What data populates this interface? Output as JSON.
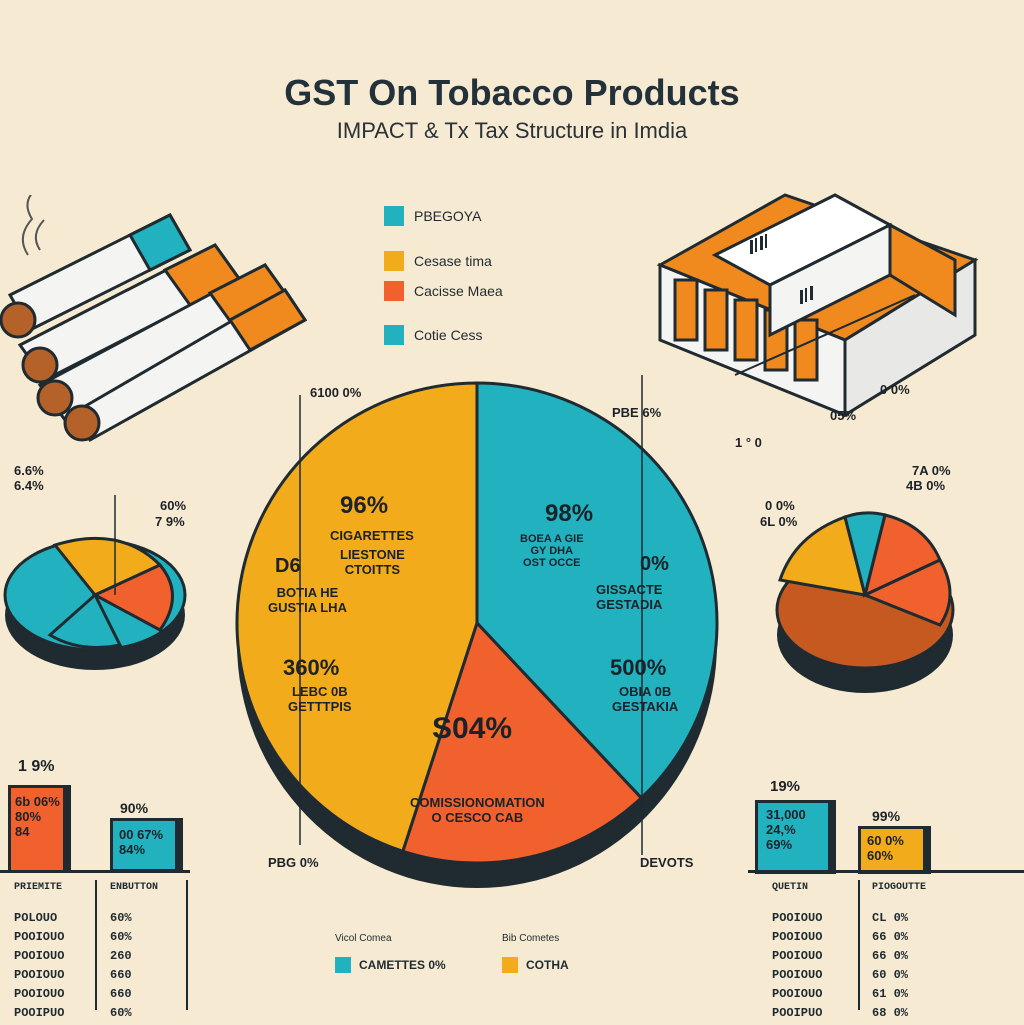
{
  "title": "GST On Tobacco Products",
  "subtitle": "IMPACT & Tx Tax Structure in Imdia",
  "colors": {
    "background": "#f6ead2",
    "yellow": "#f2ab1b",
    "teal": "#22b2bf",
    "orange": "#f0612e",
    "dark": "#1f2b30"
  },
  "legend": [
    {
      "label": "PBEGOYA",
      "color": "#22b2bf"
    },
    {
      "label": "Cesase tima",
      "color": "#f2ab1b"
    },
    {
      "label": "Cacisse Maea",
      "color": "#f0612e"
    },
    {
      "label": "Cotie Cess",
      "color": "#22b2bf"
    }
  ],
  "chart_data": [
    {
      "type": "pie",
      "slices": [
        {
          "color": "yellow",
          "value": 45
        },
        {
          "color": "teal",
          "value": 38
        },
        {
          "color": "orange",
          "value": 17
        }
      ],
      "labels": {
        "top_left": "6100 0%",
        "top_right": "PBE 6%",
        "bottom_left": "PBG 0%",
        "bottom_right": "DEVOTS",
        "yellow_pct_1": "96%",
        "yellow_text_1": "CIGARETTES",
        "yellow_text_2": "LIESTONE\nCTOITTS",
        "yellow_pct_2": "D6",
        "yellow_text_3": "BOTIA HE\nGUSTIA LHA",
        "yellow_pct_3": "360%",
        "yellow_text_4": "LEBC 0B\nGETTTPIS",
        "teal_pct_1": "98%",
        "teal_text_1": "BOEA A GIE\nGY DHA\nOST OCCE",
        "teal_pct_2": "0%",
        "teal_text_2": "GISSACTE\nGESTADIA",
        "teal_pct_3": "500%",
        "teal_text_3": "OBIA 0B\nGESTAKIA",
        "orange_pct": "S04%",
        "orange_text": "COMISSIONOMATION\nO CESCO CAB"
      }
    },
    {
      "type": "pie",
      "labels": [
        "6.6%",
        "6.4%",
        "60%",
        "7 9%"
      ]
    },
    {
      "type": "pie",
      "labels": [
        "7A 0%",
        "4B 0%",
        "0 0%",
        "6L 0%"
      ]
    },
    {
      "type": "bar",
      "title": "1 9%",
      "bars": [
        {
          "color": "orange",
          "text": "6b 06%\n80%\n84"
        },
        {
          "color": "teal",
          "text": "00 67%\n84%"
        }
      ],
      "bar_top_label": "90%",
      "table_headers": [
        "PRIEMITE",
        "ENBUTTON"
      ],
      "rows": [
        [
          "POLOUO",
          "60%"
        ],
        [
          "POOIOUO",
          "60%"
        ],
        [
          "POOIOUO",
          "260"
        ],
        [
          "POOIOUO",
          "660"
        ],
        [
          "POOIOUO",
          "660"
        ],
        [
          "POOIPUO",
          "60%"
        ]
      ]
    },
    {
      "type": "bar",
      "title": "19%",
      "bars": [
        {
          "color": "teal",
          "text": "31,000\n24,%\n69%"
        },
        {
          "color": "yellow",
          "text": "60 0%\n60%"
        }
      ],
      "bar_top_label": "99%",
      "table_headers": [
        "QUETIN",
        "PIOGOUTTE"
      ],
      "rows": [
        [
          "POOIOUO",
          "CL 0%"
        ],
        [
          "POOIOUO",
          "66 0%"
        ],
        [
          "POOIOUO",
          "66 0%"
        ],
        [
          "POOIOUO",
          "60 0%"
        ],
        [
          "POOIOUO",
          "61 0%"
        ],
        [
          "POOIPUO",
          "68 0%"
        ]
      ]
    }
  ],
  "stack_labels": {
    "a": "0 0%",
    "b": "05%",
    "c": "1 ° 0"
  },
  "bottom_legend": {
    "left_title": "Vicol Comea",
    "left_label": "CAMETTES 0%",
    "right_title": "Bib Cometes",
    "right_label": "COTHA"
  }
}
